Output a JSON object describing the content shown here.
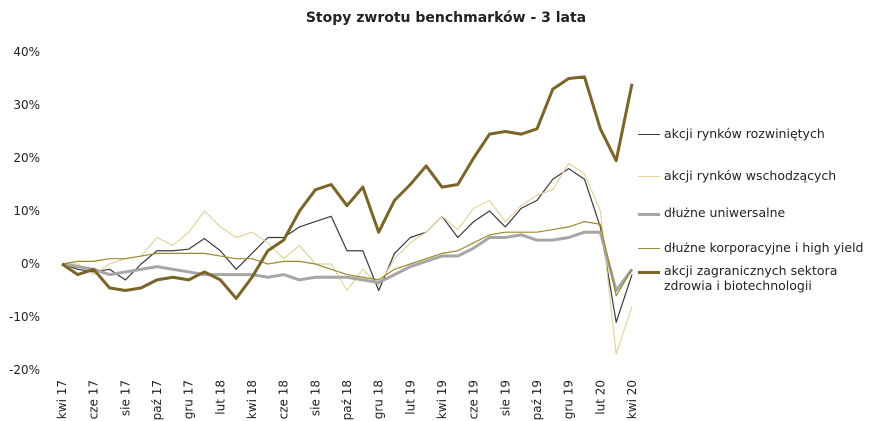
{
  "chart_data": {
    "type": "line",
    "title": "Stopy zwrotu benchmarków - 3 lata",
    "categories": [
      "kwi 17",
      null,
      "cze 17",
      null,
      "sie 17",
      null,
      "paź 17",
      null,
      "gru 17",
      null,
      "lut 18",
      null,
      "kwi 18",
      null,
      "cze 18",
      null,
      "sie 18",
      null,
      "paź 18",
      null,
      "gru 18",
      null,
      "lut 19",
      null,
      "kwi 19",
      null,
      "cze 19",
      null,
      "sie 19",
      null,
      "paź 19",
      null,
      "gru 19",
      null,
      "lut 20",
      null,
      "kwi 20"
    ],
    "series": [
      {
        "name": "akcji rynków rozwiniętych",
        "color": "#3a3a3a",
        "linewidth": 1.2,
        "values": [
          0,
          -1,
          -1.5,
          -1,
          -3,
          0,
          2.5,
          2.5,
          2.8,
          4.8,
          2.5,
          -1,
          2,
          5,
          5,
          7,
          8,
          9,
          2.5,
          2.5,
          -5,
          2,
          5,
          6,
          9,
          5,
          8,
          10,
          7,
          10.5,
          12,
          16,
          18,
          16,
          7,
          -11,
          -2
        ]
      },
      {
        "name": "akcji rynków wschodzących",
        "color": "#e3d2a0",
        "linewidth": 1.2,
        "values": [
          0,
          0,
          -2,
          0,
          1,
          1.5,
          5,
          3.5,
          6,
          10,
          7,
          5,
          6,
          4,
          1,
          3.5,
          0,
          0,
          -5,
          -1,
          -4,
          1,
          4,
          6,
          9,
          6.5,
          10.5,
          12,
          8,
          11,
          13,
          14,
          19,
          17,
          10,
          -17,
          -8
        ]
      },
      {
        "name": "dłużne uniwersalne",
        "color": "#a6a6a6",
        "linewidth": 3,
        "values": [
          0,
          -0.5,
          -1,
          -2,
          -1.5,
          -1,
          -0.5,
          -1,
          -1.5,
          -2,
          -2,
          -2,
          -2,
          -2.5,
          -2,
          -3,
          -2.5,
          -2.5,
          -2.5,
          -3,
          -3.5,
          -2,
          -0.5,
          0.5,
          1.5,
          1.5,
          3,
          5,
          5,
          5.5,
          4.5,
          4.5,
          5,
          6,
          6,
          -5,
          -1
        ]
      },
      {
        "name": "dłużne korporacyjne i high yield",
        "color": "#9a8a2c",
        "linewidth": 1.2,
        "values": [
          0,
          0.5,
          0.5,
          1,
          1,
          1.5,
          2,
          2,
          2,
          2,
          1.5,
          1,
          1,
          0,
          0.5,
          0.5,
          0,
          -1,
          -2,
          -2.5,
          -3,
          -1,
          0,
          1,
          2,
          2.5,
          4,
          5.5,
          6,
          6,
          6,
          6.5,
          7,
          8,
          7.5,
          -6,
          -1
        ]
      },
      {
        "name": "akcji zagranicznych sektora zdrowia i biotechnologii",
        "color": "#7a6428",
        "linewidth": 3,
        "values": [
          0,
          -2,
          -1,
          -4.5,
          -5,
          -4.5,
          -3,
          -2.5,
          -3,
          -1.5,
          -3,
          -6.5,
          -2.5,
          2.5,
          4.5,
          10,
          14,
          15,
          11,
          14.5,
          6,
          12,
          15,
          18.5,
          14.5,
          15,
          20,
          24.5,
          25,
          24.5,
          25.5,
          33,
          35,
          35.3,
          25.5,
          19.5,
          34
        ]
      }
    ],
    "ylim": [
      -20,
      40
    ],
    "yticks": [
      {
        "value": -20,
        "label": "-20%"
      },
      {
        "value": -10,
        "label": "-10%"
      },
      {
        "value": 0,
        "label": "0%"
      },
      {
        "value": 10,
        "label": "10%"
      },
      {
        "value": 20,
        "label": "20%"
      },
      {
        "value": 30,
        "label": "30%"
      },
      {
        "value": 40,
        "label": "40%"
      }
    ]
  }
}
